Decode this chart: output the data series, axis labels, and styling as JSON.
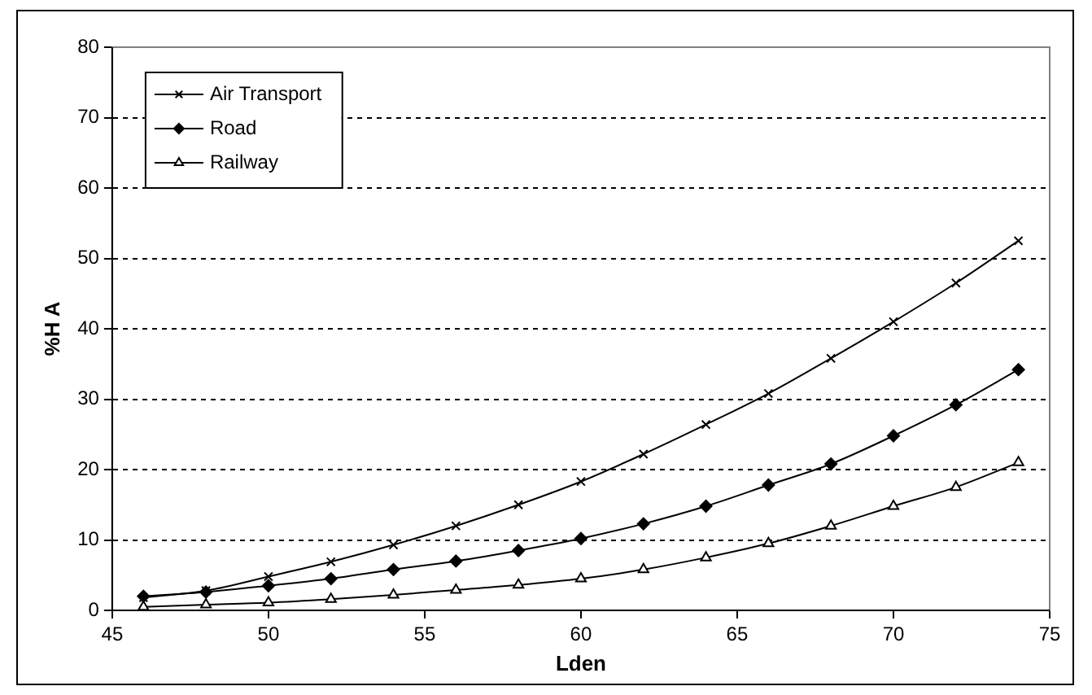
{
  "chart_data": {
    "type": "line",
    "xlabel": "Lden",
    "ylabel": "%H A",
    "x": [
      46,
      48,
      50,
      52,
      54,
      56,
      58,
      60,
      62,
      64,
      66,
      68,
      70,
      72,
      74
    ],
    "series": [
      {
        "name": "Air Transport",
        "color": "#000000",
        "marker": "cross",
        "values": [
          1.8,
          2.8,
          4.8,
          6.9,
          9.3,
          12,
          15,
          18.3,
          22.2,
          26.4,
          30.8,
          35.8,
          41,
          46.5,
          52.5
        ]
      },
      {
        "name": "Road",
        "color": "#000000",
        "marker": "diamond",
        "values": [
          2,
          2.6,
          3.5,
          4.5,
          5.8,
          7,
          8.5,
          10.2,
          12.3,
          14.8,
          17.8,
          20.8,
          24.8,
          29.2,
          34.2
        ]
      },
      {
        "name": "Railway",
        "color": "#000000",
        "marker": "triangle",
        "values": [
          0.5,
          0.8,
          1.1,
          1.6,
          2.2,
          2.9,
          3.6,
          4.5,
          5.8,
          7.5,
          9.5,
          12,
          14.8,
          17.5,
          21
        ]
      }
    ],
    "xlim": [
      45,
      75
    ],
    "xticks": [
      45,
      50,
      55,
      60,
      65,
      70,
      75
    ],
    "ylim": [
      0,
      80
    ],
    "yticks": [
      0,
      10,
      20,
      30,
      40,
      50,
      60,
      70,
      80
    ],
    "grid": "y",
    "legend": "top left",
    "line_style": "solid"
  }
}
